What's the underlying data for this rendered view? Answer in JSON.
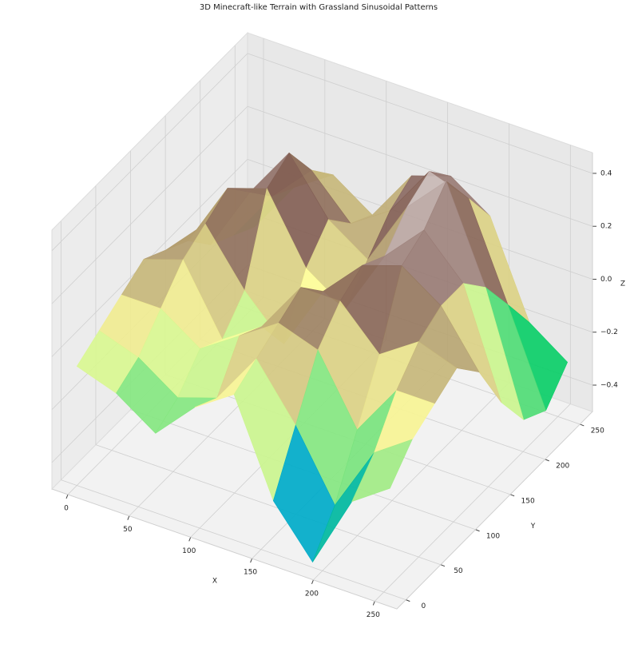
{
  "chart_data": {
    "type": "surface3d",
    "title": "3D Minecraft-like Terrain with Grassland Sinusoidal Patterns",
    "xlabel": "X",
    "ylabel": "Y",
    "zlabel": "Z",
    "colormap": "terrain",
    "x": [
      0,
      32,
      64,
      96,
      128,
      160,
      192,
      224,
      255
    ],
    "y": [
      0,
      32,
      64,
      96,
      128,
      160,
      192,
      224,
      255
    ],
    "z": [
      [
        -0.05,
        -0.1,
        -0.2,
        -0.05,
        0.05,
        -0.3,
        -0.48,
        -0.2,
        -0.1
      ],
      [
        0.0,
        -0.05,
        -0.15,
        -0.1,
        0.1,
        -0.1,
        -0.35,
        -0.1,
        0.0
      ],
      [
        0.05,
        0.05,
        -0.05,
        0.05,
        0.15,
        0.1,
        -0.15,
        0.05,
        0.05
      ],
      [
        0.1,
        0.15,
        -0.1,
        0.0,
        0.2,
        0.2,
        0.05,
        0.15,
        0.1
      ],
      [
        0.05,
        0.2,
        0.0,
        -0.15,
        0.1,
        0.25,
        0.3,
        0.2,
        0.0
      ],
      [
        0.0,
        0.25,
        0.3,
        0.05,
        -0.05,
        0.2,
        0.35,
        0.2,
        -0.2
      ],
      [
        -0.1,
        0.15,
        0.35,
        0.15,
        0.05,
        0.3,
        0.45,
        0.1,
        -0.35
      ],
      [
        -0.15,
        0.05,
        0.2,
        0.05,
        0.15,
        0.35,
        0.3,
        -0.05,
        -0.4
      ],
      [
        -0.2,
        0.0,
        0.1,
        0.0,
        0.2,
        0.25,
        0.15,
        -0.2,
        -0.3
      ]
    ],
    "xlim": [
      -13,
      268
    ],
    "ylim": [
      -13,
      268
    ],
    "zlim": [
      -0.5,
      0.478
    ],
    "xticks": [
      0,
      50,
      100,
      150,
      200,
      250
    ],
    "yticks": [
      0,
      50,
      100,
      150,
      200,
      250
    ],
    "zticks": [
      {
        "value": -0.4,
        "label": "−0.4"
      },
      {
        "value": -0.2,
        "label": "−0.2"
      },
      {
        "value": 0,
        "label": "0.0"
      },
      0.2,
      0.4
    ],
    "grid": true
  }
}
